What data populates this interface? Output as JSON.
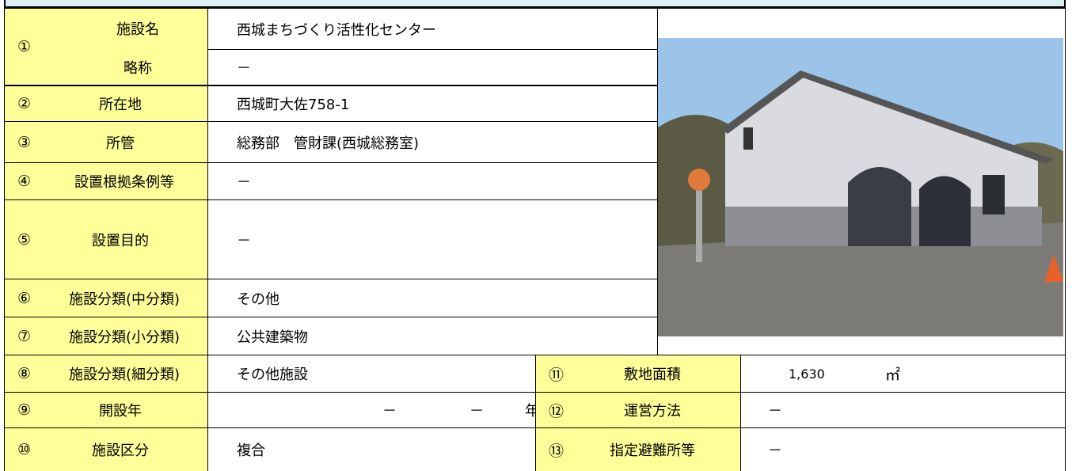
{
  "rows": [
    {
      "number": "①",
      "label": "施設名",
      "value": "西城まちづくり活性化センター"
    },
    {
      "label": "略称",
      "value": "－"
    },
    {
      "number": "②",
      "label": "所在地",
      "value": "西城町大佐758-1"
    },
    {
      "number": "③",
      "label": "所管",
      "value": "総務部　管財課(西城総務室)"
    },
    {
      "number": "④",
      "label": "設置根拠条例等",
      "value": "－"
    },
    {
      "number": "⑤",
      "label": "設置目的",
      "value": "－"
    },
    {
      "number": "⑥",
      "label": "施設分類(中分類)",
      "value": "その他"
    },
    {
      "number": "⑦",
      "label": "施設分類(小分類)",
      "value": "公共建築物"
    },
    {
      "number": "⑧",
      "label": "施設分類(細分類)",
      "value": "その他施設"
    },
    {
      "number": "⑨",
      "label": "開設年",
      "value": [
        "－",
        "－",
        "年"
      ]
    },
    {
      "number": "⑩",
      "label": "施設区分",
      "value": "複合"
    }
  ],
  "right_rows": [
    {
      "number": "⑪",
      "label": "敷地面積",
      "value": "1,630",
      "unit": "㎡"
    },
    {
      "number": "⑫",
      "label": "運営方法",
      "value": "－"
    },
    {
      "number": "⑬",
      "label": "指定避難所等",
      "value": "－"
    }
  ]
}
